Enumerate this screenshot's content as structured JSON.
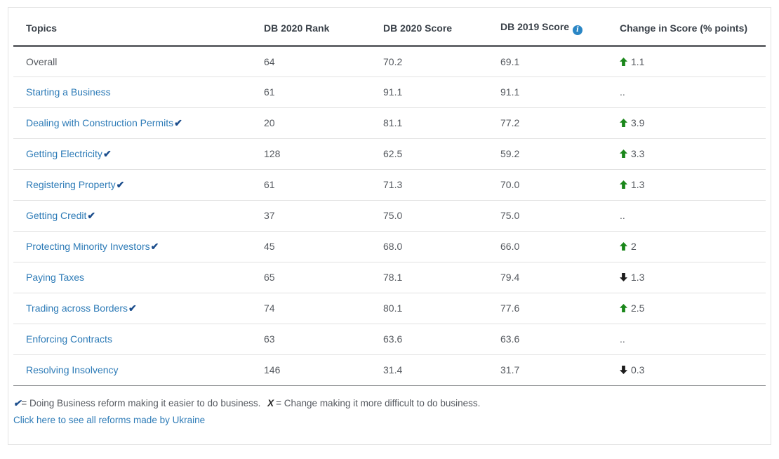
{
  "colors": {
    "link_blue": "#2d7bb7",
    "check_navy": "#1b4d8c",
    "info_blue": "#2a86c5",
    "positive_green": "#1a871a",
    "negative_black": "#1d1d1d",
    "body_gray": "#55595f",
    "header_dark": "#3a4149"
  },
  "icons": {
    "reform_check": "✔",
    "info_glyph": "i"
  },
  "table": {
    "headers": [
      {
        "label": "Topics"
      },
      {
        "label": "DB 2020 Rank"
      },
      {
        "label": "DB 2020 Score"
      },
      {
        "label": "DB 2019 Score",
        "info_icon": "info-icon"
      },
      {
        "label": "Change in Score (% points)"
      }
    ],
    "rows": [
      {
        "topic": "Overall",
        "is_link": false,
        "has_reform_check": false,
        "rank": "64",
        "score_2020": "70.2",
        "score_2019": "69.1",
        "change": {
          "direction": "up",
          "value": "1.1"
        }
      },
      {
        "topic": "Starting a Business",
        "is_link": true,
        "has_reform_check": false,
        "rank": "61",
        "score_2020": "91.1",
        "score_2019": "91.1",
        "change": {
          "direction": "none",
          "value": ".."
        }
      },
      {
        "topic": "Dealing with Construction Permits",
        "is_link": true,
        "has_reform_check": true,
        "rank": "20",
        "score_2020": "81.1",
        "score_2019": "77.2",
        "change": {
          "direction": "up",
          "value": "3.9"
        }
      },
      {
        "topic": "Getting Electricity",
        "is_link": true,
        "has_reform_check": true,
        "rank": "128",
        "score_2020": "62.5",
        "score_2019": "59.2",
        "change": {
          "direction": "up",
          "value": "3.3"
        }
      },
      {
        "topic": "Registering Property",
        "is_link": true,
        "has_reform_check": true,
        "rank": "61",
        "score_2020": "71.3",
        "score_2019": "70.0",
        "change": {
          "direction": "up",
          "value": "1.3"
        }
      },
      {
        "topic": "Getting Credit",
        "is_link": true,
        "has_reform_check": true,
        "rank": "37",
        "score_2020": "75.0",
        "score_2019": "75.0",
        "change": {
          "direction": "none",
          "value": ".."
        }
      },
      {
        "topic": "Protecting Minority Investors",
        "is_link": true,
        "has_reform_check": true,
        "rank": "45",
        "score_2020": "68.0",
        "score_2019": "66.0",
        "change": {
          "direction": "up",
          "value": "2"
        }
      },
      {
        "topic": "Paying Taxes",
        "is_link": true,
        "has_reform_check": false,
        "rank": "65",
        "score_2020": "78.1",
        "score_2019": "79.4",
        "change": {
          "direction": "down",
          "value": "1.3"
        }
      },
      {
        "topic": "Trading across Borders",
        "is_link": true,
        "has_reform_check": true,
        "rank": "74",
        "score_2020": "80.1",
        "score_2019": "77.6",
        "change": {
          "direction": "up",
          "value": "2.5"
        }
      },
      {
        "topic": "Enforcing Contracts",
        "is_link": true,
        "has_reform_check": false,
        "rank": "63",
        "score_2020": "63.6",
        "score_2019": "63.6",
        "change": {
          "direction": "none",
          "value": ".."
        }
      },
      {
        "topic": "Resolving Insolvency",
        "is_link": true,
        "has_reform_check": false,
        "rank": "146",
        "score_2020": "31.4",
        "score_2019": "31.7",
        "change": {
          "direction": "down",
          "value": "0.3"
        }
      }
    ]
  },
  "footer": {
    "legend": {
      "check_symbol": "✔",
      "check_text": "= Doing Business reform making it easier to do business.",
      "x_symbol": "X",
      "x_text": "=  Change making it more difficult to do business."
    },
    "link_label": "Click here to see all reforms made by Ukraine"
  }
}
